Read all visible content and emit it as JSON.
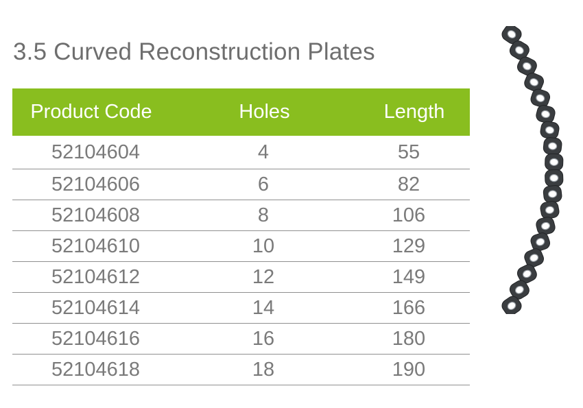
{
  "title": "3.5 Curved Reconstruction Plates",
  "table": {
    "headers": [
      "Product Code",
      "Holes",
      "Length"
    ],
    "rows": [
      [
        "52104604",
        "4",
        "55"
      ],
      [
        "52104606",
        "6",
        "82"
      ],
      [
        "52104608",
        "8",
        "106"
      ],
      [
        "52104610",
        "10",
        "129"
      ],
      [
        "52104612",
        "12",
        "149"
      ],
      [
        "52104614",
        "14",
        "166"
      ],
      [
        "52104616",
        "16",
        "180"
      ],
      [
        "52104618",
        "18",
        "190"
      ]
    ]
  },
  "colors": {
    "header_bg": "#89be1f",
    "header_text": "#ffffff",
    "body_text": "#7a7a7a",
    "title_text": "#6e6e6e",
    "plate": "#3a3d40"
  },
  "image": {
    "icon": "curved-reconstruction-plate-icon"
  }
}
